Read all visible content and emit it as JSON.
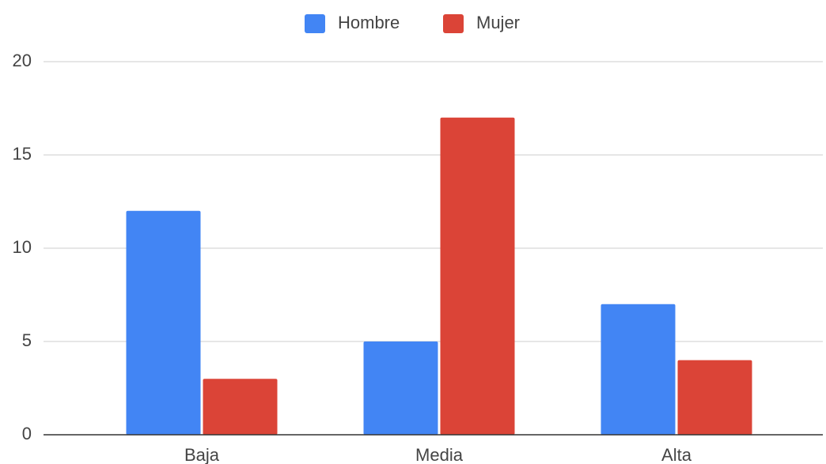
{
  "chart_data": {
    "type": "bar",
    "categories": [
      "Baja",
      "Media",
      "Alta"
    ],
    "series": [
      {
        "name": "Hombre",
        "color": "#4285f4",
        "values": [
          12,
          5,
          7
        ]
      },
      {
        "name": "Mujer",
        "color": "#db4437",
        "values": [
          3,
          17,
          4
        ]
      }
    ],
    "ylim": [
      0,
      20
    ],
    "yticks": [
      0,
      5,
      10,
      15,
      20
    ],
    "grid": true,
    "legend": "top"
  }
}
